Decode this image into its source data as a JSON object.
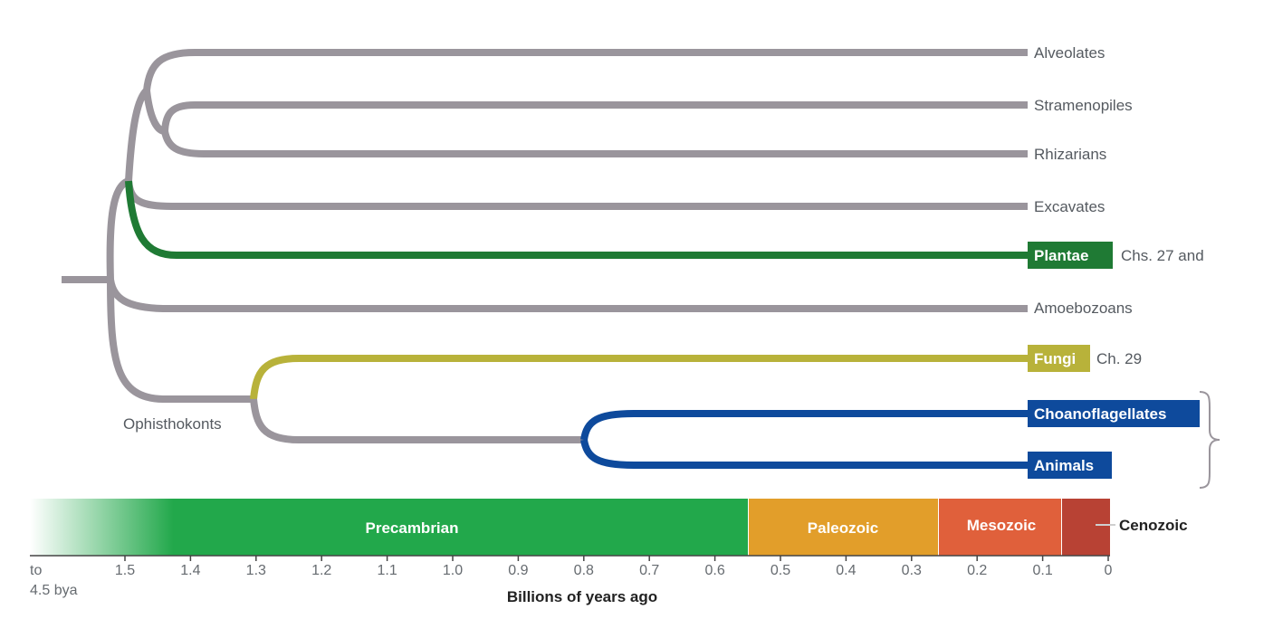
{
  "colors": {
    "gray": "#9a959c",
    "green": "#1f7a34",
    "olive": "#b8b23a",
    "blue": "#0e4a9c",
    "precambrian": "#22a84b",
    "paleozoic": "#e29e2a",
    "mesozoic": "#e0603b",
    "cenozoic": "#b84234"
  },
  "taxa": {
    "alveolates": "Alveolates",
    "stramenopiles": "Stramenopiles",
    "rhizarians": "Rhizarians",
    "excavates": "Excavates",
    "plantae": "Plantae",
    "amoebozoans": "Amoebozoans",
    "fungi": "Fungi",
    "choanoflagellates": "Choanoflagellates",
    "animals": "Animals"
  },
  "notes": {
    "plantae": "Chs. 27 and",
    "fungi": "Ch. 29"
  },
  "clade_labels": {
    "opisthokonts": "Ophisthokonts"
  },
  "eras": {
    "precambrian": "Precambrian",
    "paleozoic": "Paleozoic",
    "mesozoic": "Mesozoic",
    "cenozoic": "Cenozoic"
  },
  "axis": {
    "title": "Billions of years ago",
    "start_label_line1": "to",
    "start_label_line2": "4.5 bya",
    "ticks": [
      "1.5",
      "1.4",
      "1.3",
      "1.2",
      "1.1",
      "1.0",
      "0.9",
      "0.8",
      "0.7",
      "0.6",
      "0.5",
      "0.4",
      "0.3",
      "0.2",
      "0.1",
      "0"
    ]
  }
}
